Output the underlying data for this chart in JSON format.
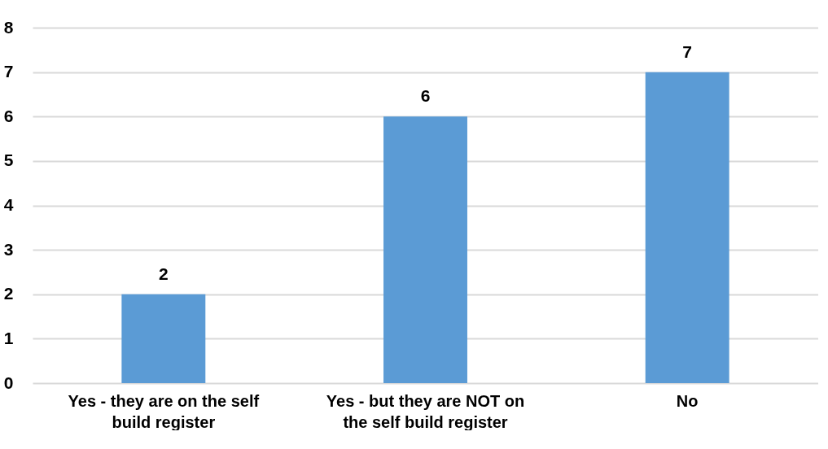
{
  "chart_data": {
    "type": "bar",
    "categories": [
      "Yes - they are on the self build register",
      "Yes - but they are NOT on the self build register",
      "No"
    ],
    "values": [
      2,
      6,
      7
    ],
    "color": "#5b9bd5",
    "ylim": [
      0,
      8
    ],
    "yticks": [
      0,
      1,
      2,
      3,
      4,
      5,
      6,
      7,
      8
    ],
    "grid": "y",
    "data_labels": true
  }
}
